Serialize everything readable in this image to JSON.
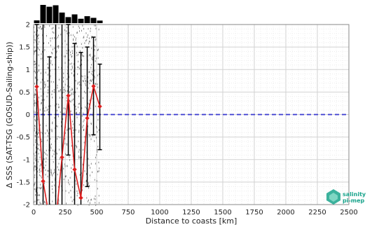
{
  "chart_data": {
    "type": "line",
    "xlabel": "Distance to coasts [km]",
    "ylabel": "Δ SSS (SAT-TSG (GOSUD-Sailing-ship))",
    "xlim": [
      0,
      2500
    ],
    "ylim": [
      -2,
      2
    ],
    "x_ticks": [
      0,
      250,
      500,
      750,
      1000,
      1250,
      1500,
      1750,
      2000,
      2250,
      2500
    ],
    "y_ticks": [
      -2,
      -1.5,
      -1,
      -0.5,
      0,
      0.5,
      1,
      1.5,
      2
    ],
    "x_tick_labels": [
      "0",
      "250",
      "500",
      "750",
      "1000",
      "1250",
      "1500",
      "1750",
      "2000",
      "2250",
      "2500"
    ],
    "y_tick_labels": [
      "-2",
      "-1.5",
      "-1",
      "-0.5",
      "0",
      "0.5",
      "1",
      "1.5",
      "2"
    ],
    "grid": true,
    "reference_line": {
      "y": 0,
      "color": "#3a3ad0",
      "style": "dashed"
    },
    "series": [
      {
        "x": [
          25,
          75,
          125,
          175,
          225,
          275,
          325,
          375,
          425,
          475,
          525
        ],
        "values": [
          0.62,
          -1.48,
          -2.3,
          -2.4,
          -0.95,
          0.42,
          -1.22,
          -1.85,
          -0.08,
          0.63,
          0.18
        ],
        "error_low": [
          -3.5,
          -3.5,
          -3.5,
          -3.5,
          -3.5,
          -0.9,
          -2.6,
          -3.0,
          -1.6,
          -0.45,
          -0.78
        ],
        "error_high": [
          2.0,
          3.0,
          1.28,
          3.5,
          2.4,
          2.0,
          1.58,
          1.38,
          1.5,
          1.72,
          1.12
        ],
        "color": "#dd1f1f",
        "marker": "diamond"
      }
    ],
    "histogram": {
      "bins": [
        25,
        75,
        125,
        175,
        225,
        275,
        325,
        375,
        425,
        475,
        525
      ],
      "relative_counts": [
        0.15,
        1.0,
        0.9,
        0.98,
        0.58,
        0.33,
        0.48,
        0.24,
        0.38,
        0.29,
        0.14
      ],
      "color": "#000000"
    },
    "colors": {
      "scatter": "#555555",
      "line": "#dd1f1f",
      "reference": "#3a3ad0",
      "error_bar": "#000000"
    }
  },
  "logo": {
    "line1": "salinity",
    "line2": "pi-mep",
    "color": "#1aa48c"
  }
}
